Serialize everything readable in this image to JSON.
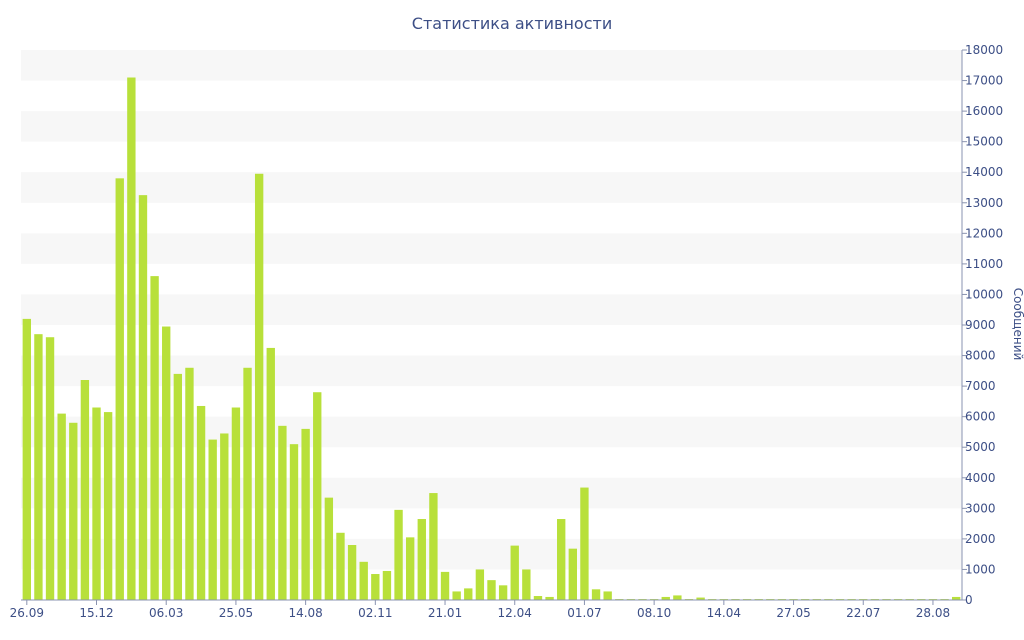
{
  "chart_data": {
    "type": "bar",
    "title": "Статистика активности",
    "xlabel": "",
    "ylabel": "Сообщений",
    "ylim": [
      0,
      18000
    ],
    "yticks": [
      0,
      1000,
      2000,
      3000,
      4000,
      5000,
      6000,
      7000,
      8000,
      9000,
      10000,
      11000,
      12000,
      13000,
      14000,
      15000,
      16000,
      17000,
      18000
    ],
    "y_axis_side": "right",
    "grid": "alternating horizontal bands",
    "legend": "none",
    "bar_color": "#b8e03a",
    "band_color": "#f7f7f7",
    "text_color": "#3d4f86",
    "x_tick_labels": [
      {
        "index": 0,
        "label": "26.09"
      },
      {
        "index": 6,
        "label": "15.12"
      },
      {
        "index": 12,
        "label": "06.03"
      },
      {
        "index": 18,
        "label": "25.05"
      },
      {
        "index": 24,
        "label": "14.08"
      },
      {
        "index": 30,
        "label": "02.11"
      },
      {
        "index": 36,
        "label": "21.01"
      },
      {
        "index": 42,
        "label": "12.04"
      },
      {
        "index": 48,
        "label": "01.07"
      },
      {
        "index": 54,
        "label": "08.10"
      },
      {
        "index": 60,
        "label": "14.04"
      },
      {
        "index": 66,
        "label": "27.05"
      },
      {
        "index": 72,
        "label": "22.07"
      },
      {
        "index": 78,
        "label": "28.08"
      }
    ],
    "values": [
      9200,
      8700,
      8600,
      6100,
      5800,
      7200,
      6300,
      6150,
      13800,
      17100,
      13250,
      10600,
      8950,
      7400,
      7600,
      6350,
      5250,
      5450,
      6300,
      7600,
      13950,
      8250,
      5700,
      5100,
      5600,
      6800,
      3350,
      2200,
      1800,
      1250,
      850,
      950,
      2950,
      2050,
      2650,
      3500,
      920,
      280,
      380,
      1000,
      650,
      480,
      1780,
      1000,
      130,
      100,
      2650,
      1680,
      3680,
      350,
      280,
      30,
      30,
      30,
      30,
      100,
      150,
      30,
      80,
      30,
      30,
      30,
      30,
      30,
      30,
      30,
      30,
      30,
      30,
      30,
      30,
      30,
      30,
      30,
      30,
      30,
      30,
      30,
      30,
      30,
      100
    ]
  }
}
